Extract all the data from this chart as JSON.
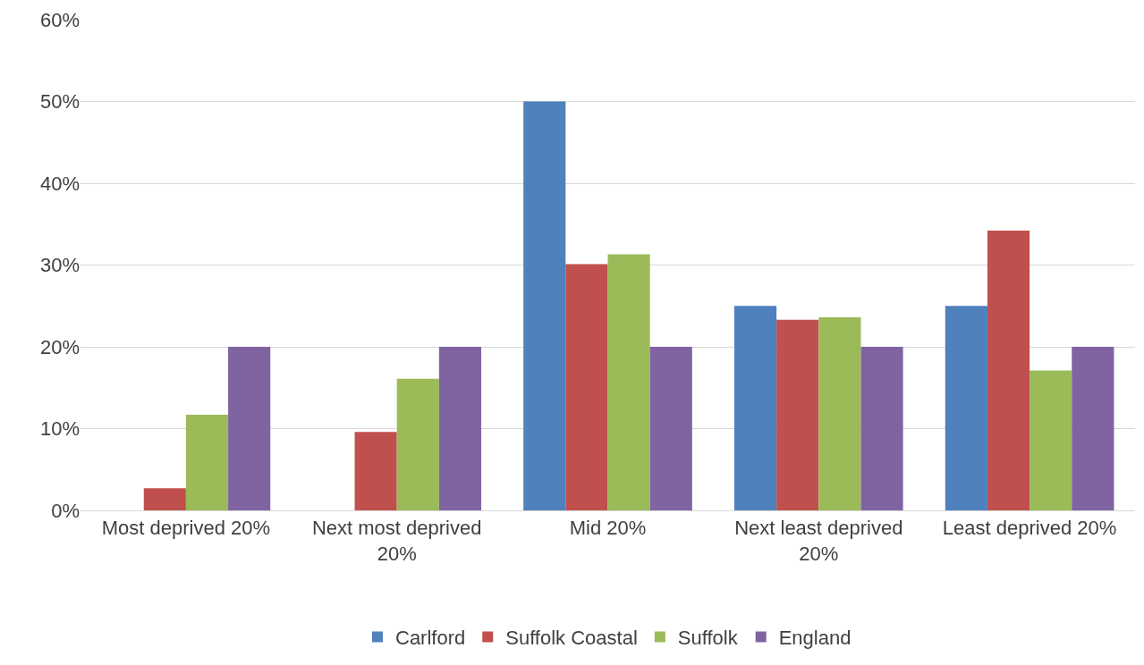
{
  "chart_data": {
    "type": "bar",
    "categories": [
      "Most deprived 20%",
      "Next most deprived 20%",
      "Mid 20%",
      "Next least deprived 20%",
      "Least deprived 20%"
    ],
    "series": [
      {
        "name": "Carlford",
        "color": "#4f81bd",
        "values": [
          0,
          0,
          50,
          25,
          25
        ]
      },
      {
        "name": "Suffolk Coastal",
        "color": "#c0504d",
        "values": [
          2.7,
          9.6,
          30.1,
          23.3,
          34.2
        ]
      },
      {
        "name": "Suffolk",
        "color": "#9bbb59",
        "values": [
          11.7,
          16.1,
          31.3,
          23.6,
          17.1
        ]
      },
      {
        "name": "England",
        "color": "#8064a2",
        "values": [
          20,
          20,
          20,
          20,
          20
        ]
      }
    ],
    "ylim": [
      0,
      60
    ],
    "yticks": [
      {
        "value": 0,
        "label": "0%"
      },
      {
        "value": 10,
        "label": "10%"
      },
      {
        "value": 20,
        "label": "20%"
      },
      {
        "value": 30,
        "label": "30%"
      },
      {
        "value": 40,
        "label": "40%"
      },
      {
        "value": 50,
        "label": "50%"
      },
      {
        "value": 60,
        "label": "60%"
      }
    ],
    "grid": "y",
    "legend": "bottom"
  }
}
